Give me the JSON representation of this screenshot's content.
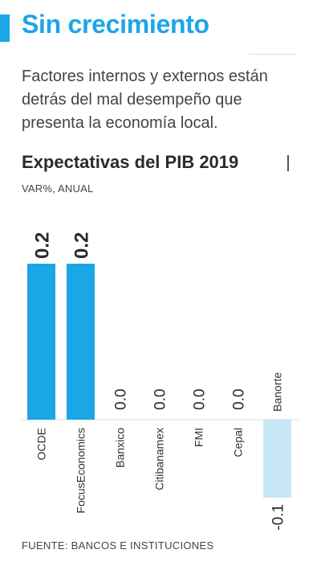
{
  "header": {
    "title": "Sin crecimiento",
    "subtitle": "Factores internos y externos están detrás del mal desempeño que presenta la economía local."
  },
  "footer": {
    "source": "FUENTE: BANCOS E INSTITUCIONES"
  },
  "colors": {
    "accent": "#1ba6e6",
    "bar_positive": "#1ba6e6",
    "bar_negative": "#c8e8f6",
    "text": "#333333"
  },
  "chart_data": {
    "type": "bar",
    "title": "Expectativas del PIB 2019",
    "subtitle": "VAR%, ANUAL",
    "categories": [
      "OCDE",
      "FocusEconomics",
      "Banxico",
      "Citibanamex",
      "FMI",
      "Cepal",
      "Banorte"
    ],
    "values": [
      0.2,
      0.2,
      0.0,
      0.0,
      0.0,
      0.0,
      -0.1
    ],
    "value_labels": [
      "0.2",
      "0.2",
      "0.0",
      "0.0",
      "0.0",
      "0.0",
      "-0.1"
    ],
    "ylim": [
      -0.1,
      0.2
    ],
    "grid": false,
    "legend": "none",
    "label_orientation": "vertical"
  }
}
